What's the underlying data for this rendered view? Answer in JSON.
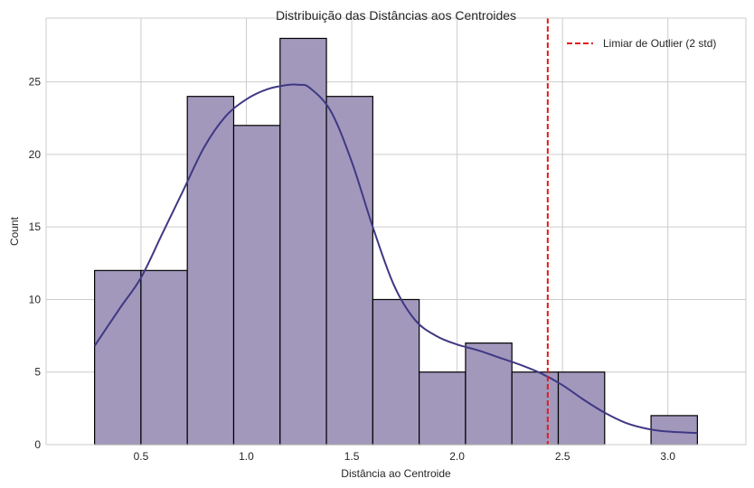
{
  "chart_data": {
    "type": "bar",
    "title": "Distribuição das Distâncias aos Centroides",
    "xlabel": "Distância ao Centroide",
    "ylabel": "Count",
    "xlim": [
      0.05,
      3.37
    ],
    "ylim": [
      0,
      29.4
    ],
    "x_ticks": [
      0.5,
      1.0,
      1.5,
      2.0,
      2.5,
      3.0
    ],
    "x_tick_labels": [
      "0.5",
      "1.0",
      "1.5",
      "2.0",
      "2.5",
      "3.0"
    ],
    "y_ticks": [
      0,
      5,
      10,
      15,
      20,
      25
    ],
    "y_tick_labels": [
      "0",
      "5",
      "10",
      "15",
      "20",
      "25"
    ],
    "bins": [
      {
        "x0": 0.28,
        "x1": 0.5,
        "count": 12
      },
      {
        "x0": 0.5,
        "x1": 0.72,
        "count": 12
      },
      {
        "x0": 0.72,
        "x1": 0.94,
        "count": 24
      },
      {
        "x0": 0.94,
        "x1": 1.16,
        "count": 22
      },
      {
        "x0": 1.16,
        "x1": 1.38,
        "count": 28
      },
      {
        "x0": 1.38,
        "x1": 1.6,
        "count": 24
      },
      {
        "x0": 1.6,
        "x1": 1.82,
        "count": 10
      },
      {
        "x0": 1.82,
        "x1": 2.04,
        "count": 5
      },
      {
        "x0": 2.04,
        "x1": 2.26,
        "count": 7
      },
      {
        "x0": 2.26,
        "x1": 2.48,
        "count": 5
      },
      {
        "x0": 2.48,
        "x1": 2.7,
        "count": 5
      },
      {
        "x0": 2.7,
        "x1": 2.92,
        "count": 0
      },
      {
        "x0": 2.92,
        "x1": 3.14,
        "count": 2
      }
    ],
    "kde": {
      "x": [
        0.28,
        0.4,
        0.5,
        0.6,
        0.7,
        0.8,
        0.9,
        1.0,
        1.1,
        1.2,
        1.25,
        1.3,
        1.4,
        1.5,
        1.6,
        1.7,
        1.8,
        1.9,
        2.0,
        2.1,
        2.2,
        2.3,
        2.4,
        2.5,
        2.6,
        2.7,
        2.8,
        2.9,
        3.0,
        3.14
      ],
      "y": [
        6.8,
        9.4,
        11.5,
        14.5,
        17.5,
        20.5,
        22.6,
        23.8,
        24.5,
        24.8,
        24.8,
        24.6,
        23.0,
        19.5,
        15.0,
        11.0,
        8.6,
        7.5,
        6.9,
        6.5,
        6.0,
        5.5,
        4.9,
        4.1,
        3.1,
        2.2,
        1.5,
        1.1,
        0.9,
        0.8
      ]
    },
    "threshold": {
      "x": 2.43,
      "label": "Limiar de Outlier (2 std)"
    },
    "grid": true,
    "legend_position": "top-right",
    "colors": {
      "bar_fill": "#a298bc",
      "bar_edge": "#000000",
      "kde_line": "#3f3884",
      "threshold_line": "#e41a1c",
      "grid": "#cccccc",
      "frame": "#cccccc"
    }
  }
}
